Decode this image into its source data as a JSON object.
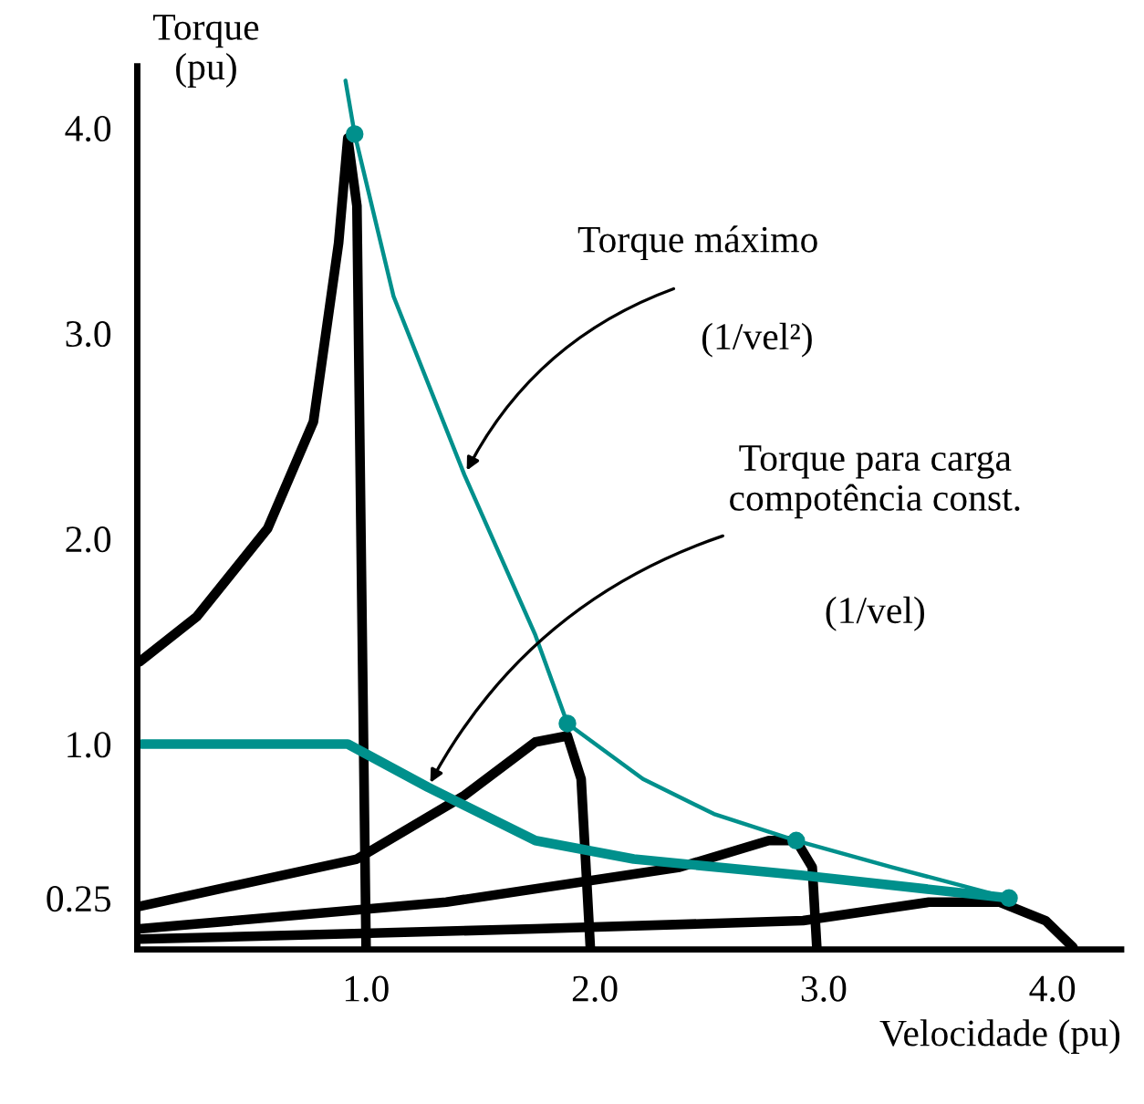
{
  "chart_data": {
    "type": "line",
    "xlabel": "Velocidade (pu)",
    "ylabel": "Torque\n(pu)",
    "xlim": [
      0,
      4.3
    ],
    "ylim": [
      0,
      4.3
    ],
    "xticks": [
      {
        "value": 1.0,
        "label": "1.0"
      },
      {
        "value": 2.0,
        "label": "2.0"
      },
      {
        "value": 3.0,
        "label": "3.0"
      },
      {
        "value": 4.0,
        "label": "4.0"
      }
    ],
    "yticks": [
      {
        "value": 0.25,
        "label": "0.25"
      },
      {
        "value": 1.0,
        "label": "1.0"
      },
      {
        "value": 2.0,
        "label": "2.0"
      },
      {
        "value": 3.0,
        "label": "3.0"
      },
      {
        "value": 4.0,
        "label": "4.0"
      }
    ],
    "grid": false,
    "legend": false,
    "series": [
      {
        "type": "line",
        "color": "#000000",
        "x": [
          0.01,
          0.26,
          0.57,
          0.77,
          0.88,
          0.92,
          0.96,
          1.0
        ],
        "values": [
          1.4,
          1.62,
          2.05,
          2.57,
          3.44,
          3.95,
          3.62,
          0.01
        ]
      },
      {
        "type": "line",
        "color": "#000000",
        "x": [
          0.01,
          0.96,
          1.43,
          1.74,
          1.88,
          1.94,
          1.98
        ],
        "values": [
          0.21,
          0.44,
          0.75,
          1.01,
          1.04,
          0.83,
          0.01
        ]
      },
      {
        "type": "line",
        "color": "#000000",
        "x": [
          0.01,
          1.35,
          2.37,
          2.76,
          2.88,
          2.95,
          2.97
        ],
        "values": [
          0.1,
          0.23,
          0.4,
          0.53,
          0.53,
          0.4,
          0.01
        ]
      },
      {
        "type": "line",
        "color": "#000000",
        "x": [
          0.01,
          1.74,
          2.91,
          3.46,
          3.77,
          3.97,
          4.09
        ],
        "values": [
          0.05,
          0.1,
          0.14,
          0.23,
          0.23,
          0.14,
          0.01
        ]
      },
      {
        "color": "#00908c",
        "x": [
          0.91,
          0.95,
          1.12,
          1.43,
          1.74,
          1.88,
          2.21,
          2.52,
          2.88,
          3.3,
          3.81
        ],
        "values": [
          4.23,
          3.97,
          3.18,
          2.31,
          1.53,
          1.1,
          0.83,
          0.66,
          0.53,
          0.4,
          0.25
        ]
      },
      {
        "color": "#00908c",
        "x": [
          0.02,
          0.92,
          1.27,
          1.74,
          2.17,
          2.91,
          3.81
        ],
        "values": [
          1.0,
          1.0,
          0.79,
          0.53,
          0.44,
          0.36,
          0.25
        ]
      },
      {
        "type": "scatter",
        "color": "#00908c",
        "marker": "circle",
        "x": [
          0.95,
          1.88,
          2.88,
          3.81
        ],
        "values": [
          3.97,
          1.1,
          0.53,
          0.25
        ]
      }
    ],
    "annotations": [
      {
        "text": "Torque máximo",
        "x": 1.43,
        "y": 2.31
      },
      "(1/vel²)",
      {
        "text": "Torque para carga\ncompotência const.",
        "x": 1.27,
        "y": 0.79
      },
      "(1/vel)"
    ]
  }
}
